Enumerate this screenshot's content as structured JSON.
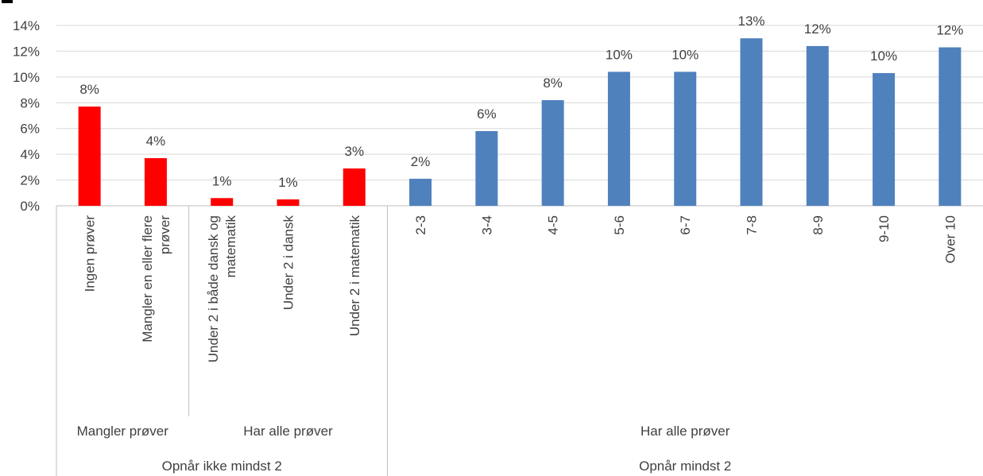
{
  "chart_data": {
    "type": "bar",
    "ylim": [
      0,
      14
    ],
    "y_ticks": [
      0,
      2,
      4,
      6,
      8,
      10,
      12,
      14
    ],
    "y_tick_labels": [
      "0%",
      "2%",
      "4%",
      "6%",
      "8%",
      "10%",
      "12%",
      "14%"
    ],
    "grid": true,
    "categories": [
      "Ingen prøver",
      "Mangler en eller flere prøver",
      "Under 2 i både dansk og matematik",
      "Under 2 i dansk",
      "Under 2 i matematik",
      "2-3",
      "3-4",
      "4-5",
      "5-6",
      "6-7",
      "7-8",
      "8-9",
      "9-10",
      "Over 10"
    ],
    "category_lines": [
      [
        "Ingen prøver"
      ],
      [
        "Mangler en eller flere",
        "prøver"
      ],
      [
        "Under 2 i både dansk og",
        "matematik"
      ],
      [
        "Under 2 i dansk"
      ],
      [
        "Under 2 i matematik"
      ],
      [
        "2-3"
      ],
      [
        "3-4"
      ],
      [
        "4-5"
      ],
      [
        "5-6"
      ],
      [
        "6-7"
      ],
      [
        "7-8"
      ],
      [
        "8-9"
      ],
      [
        "9-10"
      ],
      [
        "Over 10"
      ]
    ],
    "values": [
      7.7,
      3.7,
      0.6,
      0.5,
      2.9,
      2.1,
      5.8,
      8.2,
      10.4,
      10.4,
      13.0,
      12.4,
      10.3,
      12.3
    ],
    "data_labels": [
      "8%",
      "4%",
      "1%",
      "1%",
      "3%",
      "2%",
      "6%",
      "8%",
      "10%",
      "10%",
      "13%",
      "12%",
      "10%",
      "12%"
    ],
    "bar_colors": [
      "#ff0000",
      "#ff0000",
      "#ff0000",
      "#ff0000",
      "#ff0000",
      "#4f81bd",
      "#4f81bd",
      "#4f81bd",
      "#4f81bd",
      "#4f81bd",
      "#4f81bd",
      "#4f81bd",
      "#4f81bd",
      "#4f81bd"
    ],
    "group_level_1": [
      {
        "label": "Mangler prøver",
        "from": 0,
        "to": 1
      },
      {
        "label": "Har  alle prøver",
        "from": 2,
        "to": 4
      },
      {
        "label": "Har alle prøver",
        "from": 5,
        "to": 13
      }
    ],
    "group_level_2": [
      {
        "label": "Opnår ikke mindst 2",
        "from": 0,
        "to": 4
      },
      {
        "label": "Opnår mindst 2",
        "from": 5,
        "to": 13
      }
    ],
    "colors": {
      "red": "#ff0000",
      "blue": "#4f81bd",
      "grid": "#d9d9d9",
      "axis": "#bfbfbf",
      "text": "#404040"
    }
  }
}
